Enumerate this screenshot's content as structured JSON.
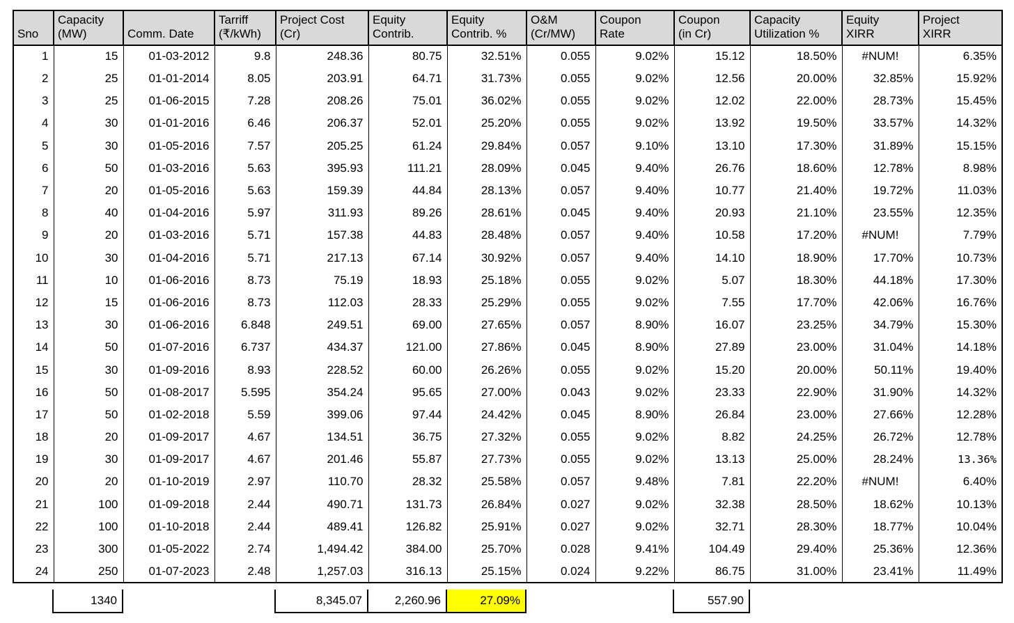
{
  "colors": {
    "header_background": "#d9d9d9",
    "highlight_yellow": "#ffff00",
    "border": "#000000",
    "text": "#000000",
    "page_background": "#ffffff"
  },
  "table": {
    "columns": [
      {
        "key": "sno",
        "label": "Sno"
      },
      {
        "key": "capacity-mw",
        "label": "Capacity\n(MW)"
      },
      {
        "key": "comm-date",
        "label": "Comm. Date"
      },
      {
        "key": "tariff",
        "label": "Tarriff\n(₹/kWh)"
      },
      {
        "key": "project-cost-cr",
        "label": "Project Cost\n(Cr)"
      },
      {
        "key": "equity-contrib",
        "label": "Equity\nContrib."
      },
      {
        "key": "equity-contrib-pct",
        "label": "Equity\nContrib. %"
      },
      {
        "key": "om-cr-mw",
        "label": "O&M\n(Cr/MW)"
      },
      {
        "key": "coupon-rate",
        "label": "Coupon\nRate"
      },
      {
        "key": "coupon-in-cr",
        "label": "Coupon\n(in Cr)"
      },
      {
        "key": "capacity-utilization-pct",
        "label": "Capacity\nUtilization %"
      },
      {
        "key": "equity-xirr",
        "label": "Equity\nXIRR"
      },
      {
        "key": "project-xirr",
        "label": "Project\nXIRR"
      }
    ],
    "rows": [
      [
        "1",
        "15",
        "01-03-2012",
        "9.8",
        "248.36",
        "80.75",
        "32.51%",
        "0.055",
        "9.02%",
        "15.12",
        "18.50%",
        "#NUM!",
        "6.35%"
      ],
      [
        "2",
        "25",
        "01-01-2014",
        "8.05",
        "203.91",
        "64.71",
        "31.73%",
        "0.055",
        "9.02%",
        "12.56",
        "20.00%",
        "32.85%",
        "15.92%"
      ],
      [
        "3",
        "25",
        "01-06-2015",
        "7.28",
        "208.26",
        "75.01",
        "36.02%",
        "0.055",
        "9.02%",
        "12.02",
        "22.00%",
        "28.73%",
        "15.45%"
      ],
      [
        "4",
        "30",
        "01-01-2016",
        "6.46",
        "206.37",
        "52.01",
        "25.20%",
        "0.055",
        "9.02%",
        "13.92",
        "19.50%",
        "33.57%",
        "14.32%"
      ],
      [
        "5",
        "30",
        "01-05-2016",
        "7.57",
        "205.25",
        "61.24",
        "29.84%",
        "0.057",
        "9.10%",
        "13.10",
        "17.30%",
        "31.89%",
        "15.15%"
      ],
      [
        "6",
        "50",
        "01-03-2016",
        "5.63",
        "395.93",
        "111.21",
        "28.09%",
        "0.045",
        "9.40%",
        "26.76",
        "18.60%",
        "12.78%",
        "8.98%"
      ],
      [
        "7",
        "20",
        "01-05-2016",
        "5.63",
        "159.39",
        "44.84",
        "28.13%",
        "0.057",
        "9.40%",
        "10.77",
        "21.40%",
        "19.72%",
        "11.03%"
      ],
      [
        "8",
        "40",
        "01-04-2016",
        "5.97",
        "311.93",
        "89.26",
        "28.61%",
        "0.045",
        "9.40%",
        "20.93",
        "21.10%",
        "23.55%",
        "12.35%"
      ],
      [
        "9",
        "20",
        "01-03-2016",
        "5.71",
        "157.38",
        "44.83",
        "28.48%",
        "0.057",
        "9.40%",
        "10.58",
        "17.20%",
        "#NUM!",
        "7.79%"
      ],
      [
        "10",
        "30",
        "01-04-2016",
        "5.71",
        "217.13",
        "67.14",
        "30.92%",
        "0.057",
        "9.40%",
        "14.10",
        "18.90%",
        "17.70%",
        "10.73%"
      ],
      [
        "11",
        "10",
        "01-06-2016",
        "8.73",
        "75.19",
        "18.93",
        "25.18%",
        "0.055",
        "9.02%",
        "5.07",
        "18.30%",
        "44.18%",
        "17.30%"
      ],
      [
        "12",
        "15",
        "01-06-2016",
        "8.73",
        "112.03",
        "28.33",
        "25.29%",
        "0.055",
        "9.02%",
        "7.55",
        "17.70%",
        "42.06%",
        "16.76%"
      ],
      [
        "13",
        "30",
        "01-06-2016",
        "6.848",
        "249.51",
        "69.00",
        "27.65%",
        "0.057",
        "8.90%",
        "16.07",
        "23.25%",
        "34.79%",
        "15.30%"
      ],
      [
        "14",
        "50",
        "01-07-2016",
        "6.737",
        "434.37",
        "121.00",
        "27.86%",
        "0.045",
        "8.90%",
        "27.89",
        "23.00%",
        "31.04%",
        "14.18%"
      ],
      [
        "15",
        "30",
        "01-09-2016",
        "8.93",
        "228.52",
        "60.00",
        "26.26%",
        "0.055",
        "9.02%",
        "15.20",
        "20.00%",
        "50.11%",
        "19.40%"
      ],
      [
        "16",
        "50",
        "01-08-2017",
        "5.595",
        "354.24",
        "95.65",
        "27.00%",
        "0.043",
        "9.02%",
        "23.33",
        "22.90%",
        "31.90%",
        "14.32%"
      ],
      [
        "17",
        "50",
        "01-02-2018",
        "5.59",
        "399.06",
        "97.44",
        "24.42%",
        "0.045",
        "8.90%",
        "26.84",
        "23.00%",
        "27.66%",
        "12.28%"
      ],
      [
        "18",
        "20",
        "01-09-2017",
        "4.67",
        "134.51",
        "36.75",
        "27.32%",
        "0.055",
        "9.02%",
        "8.82",
        "24.25%",
        "26.72%",
        "12.78%"
      ],
      [
        "19",
        "30",
        "01-09-2017",
        "4.67",
        "201.46",
        "55.87",
        "27.73%",
        "0.055",
        "9.02%",
        "13.13",
        "25.00%",
        "28.24%",
        "13.36%"
      ],
      [
        "20",
        "20",
        "01-10-2019",
        "2.97",
        "110.70",
        "28.32",
        "25.58%",
        "0.057",
        "9.48%",
        "7.81",
        "22.20%",
        "#NUM!",
        "6.40%"
      ],
      [
        "21",
        "100",
        "01-09-2018",
        "2.44",
        "490.71",
        "131.73",
        "26.84%",
        "0.027",
        "9.02%",
        "32.38",
        "28.50%",
        "18.62%",
        "10.13%"
      ],
      [
        "22",
        "100",
        "01-10-2018",
        "2.44",
        "489.41",
        "126.82",
        "25.91%",
        "0.027",
        "9.02%",
        "32.71",
        "28.30%",
        "18.77%",
        "10.04%"
      ],
      [
        "23",
        "300",
        "01-05-2022",
        "2.74",
        "1,494.42",
        "384.00",
        "25.70%",
        "0.028",
        "9.41%",
        "104.49",
        "29.40%",
        "25.36%",
        "12.36%"
      ],
      [
        "24",
        "250",
        "01-07-2023",
        "2.48",
        "1,257.03",
        "316.13",
        "25.15%",
        "0.024",
        "9.22%",
        "86.75",
        "31.00%",
        "23.41%",
        "11.49%"
      ]
    ],
    "error_value": "#NUM!",
    "mono_cells": [
      [
        19,
        13
      ]
    ],
    "totals": [
      null,
      {
        "value": "1340"
      },
      null,
      null,
      {
        "value": "8,345.07"
      },
      {
        "value": "2,260.96"
      },
      {
        "value": "27.09%",
        "highlight": true
      },
      null,
      null,
      {
        "value": "557.90"
      },
      null,
      null,
      null
    ]
  }
}
